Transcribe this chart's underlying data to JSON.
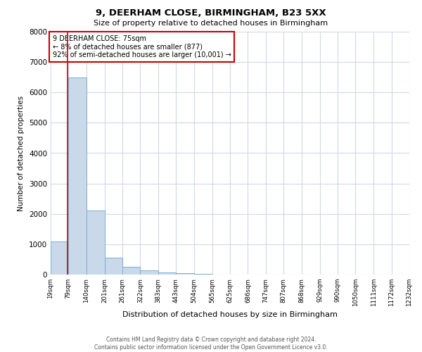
{
  "title1": "9, DEERHAM CLOSE, BIRMINGHAM, B23 5XX",
  "title2": "Size of property relative to detached houses in Birmingham",
  "xlabel": "Distribution of detached houses by size in Birmingham",
  "ylabel": "Number of detached properties",
  "annotation_line1": "9 DEERHAM CLOSE: 75sqm",
  "annotation_line2": "← 8% of detached houses are smaller (877)",
  "annotation_line3": "92% of semi-detached houses are larger (10,001) →",
  "property_size_sqm": 75,
  "bin_edges": [
    19,
    79,
    140,
    201,
    261,
    322,
    383,
    443,
    504,
    565,
    625,
    686,
    747,
    807,
    868,
    929,
    990,
    1050,
    1111,
    1172,
    1232
  ],
  "bar_heights": [
    1100,
    6500,
    2100,
    550,
    250,
    130,
    80,
    50,
    30,
    10,
    5,
    2,
    1,
    1,
    0,
    0,
    0,
    0,
    0,
    0
  ],
  "bar_color": "#c9d9ea",
  "bar_edge_color": "#7aafd4",
  "property_line_color": "#cc0000",
  "grid_color": "#d0d8e8",
  "background_color": "#ffffff",
  "footer_line1": "Contains HM Land Registry data © Crown copyright and database right 2024.",
  "footer_line2": "Contains public sector information licensed under the Open Government Licence v3.0.",
  "ylim": [
    0,
    8000
  ],
  "yticks": [
    0,
    1000,
    2000,
    3000,
    4000,
    5000,
    6000,
    7000,
    8000
  ]
}
